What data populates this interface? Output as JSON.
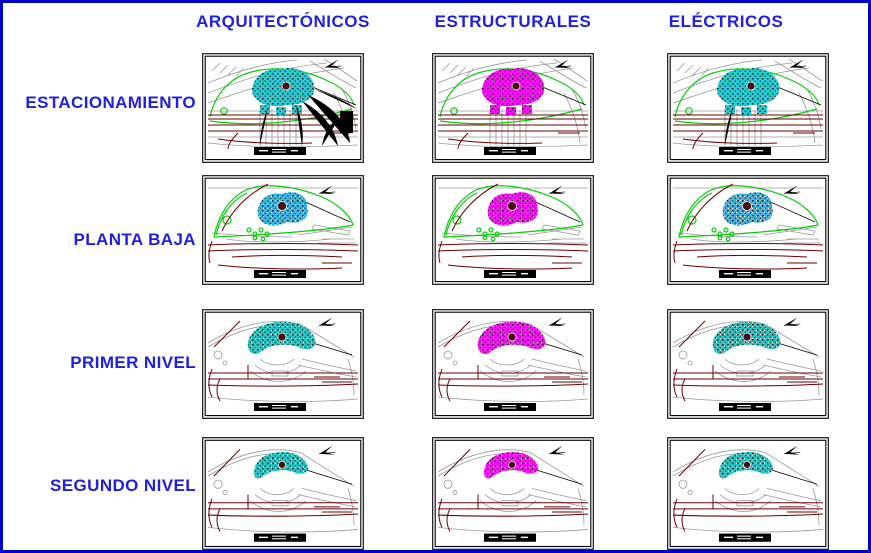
{
  "sheet": {
    "columns": [
      {
        "id": "arquitectonicos",
        "label": "ARQUITECTÓNICOS"
      },
      {
        "id": "estructurales",
        "label": "ESTRUCTURALES"
      },
      {
        "id": "electricos",
        "label": "ELÉCTRICOS"
      }
    ],
    "rows": [
      {
        "id": "estacionamiento",
        "label": "ESTACIONAMIENTO"
      },
      {
        "id": "planta-baja",
        "label": "PLANTA BAJA"
      },
      {
        "id": "primer-nivel",
        "label": "PRIMER NIVEL"
      },
      {
        "id": "segundo-nivel",
        "label": "SEGUNDO NIVEL"
      }
    ],
    "cells": [
      {
        "row": "ESTACIONAMIENTO",
        "column": "ARQUITECTÓNICOS",
        "row_index": 0,
        "col_index": 0,
        "cluster_color": "#1FC8D2",
        "extras": [
          "util-r1",
          "drops-r1"
        ]
      },
      {
        "row": "ESTACIONAMIENTO",
        "column": "ESTRUCTURALES",
        "row_index": 0,
        "col_index": 1,
        "cluster_color": "#FF00FF",
        "extras": []
      },
      {
        "row": "ESTACIONAMIENTO",
        "column": "ELÉCTRICOS",
        "row_index": 0,
        "col_index": 2,
        "cluster_color": "#16CCD6",
        "extras": [
          "drops-r1"
        ]
      },
      {
        "row": "PLANTA BAJA",
        "column": "ARQUITECTÓNICOS",
        "row_index": 1,
        "col_index": 0,
        "cluster_color": "#2EB4E8",
        "extras": []
      },
      {
        "row": "PLANTA BAJA",
        "column": "ESTRUCTURALES",
        "row_index": 1,
        "col_index": 1,
        "cluster_color": "#FF00FF",
        "extras": []
      },
      {
        "row": "PLANTA BAJA",
        "column": "ELÉCTRICOS",
        "row_index": 1,
        "col_index": 2,
        "cluster_color": "#2EB4E8",
        "extras": []
      },
      {
        "row": "PRIMER NIVEL",
        "column": "ARQUITECTÓNICOS",
        "row_index": 2,
        "col_index": 0,
        "cluster_color": "#19C4C4",
        "extras": []
      },
      {
        "row": "PRIMER NIVEL",
        "column": "ESTRUCTURALES",
        "row_index": 2,
        "col_index": 1,
        "cluster_color": "#FF00FF",
        "extras": []
      },
      {
        "row": "PRIMER NIVEL",
        "column": "ELÉCTRICOS",
        "row_index": 2,
        "col_index": 2,
        "cluster_color": "#19C4C4",
        "extras": []
      },
      {
        "row": "SEGUNDO NIVEL",
        "column": "ARQUITECTÓNICOS",
        "row_index": 3,
        "col_index": 0,
        "cluster_color": "#19C4C4",
        "extras": []
      },
      {
        "row": "SEGUNDO NIVEL",
        "column": "ESTRUCTURALES",
        "row_index": 3,
        "col_index": 1,
        "cluster_color": "#FF00FF",
        "extras": []
      },
      {
        "row": "SEGUNDO NIVEL",
        "column": "ELÉCTRICOS",
        "row_index": 3,
        "col_index": 2,
        "cluster_color": "#19C4C4",
        "extras": []
      }
    ]
  },
  "colors": {
    "text_blue": "#2020E0",
    "border_blue": "#0000CC",
    "contour_gray": "#9A9A9A",
    "boundary_green": "#0ACC0A",
    "road_maroon": "#6B0000",
    "utility_cyan": "#00D9D9",
    "structural_magenta": "#FF00FF",
    "architectural_cyan": "#1FC8D2",
    "background": "#FFFFFF"
  }
}
